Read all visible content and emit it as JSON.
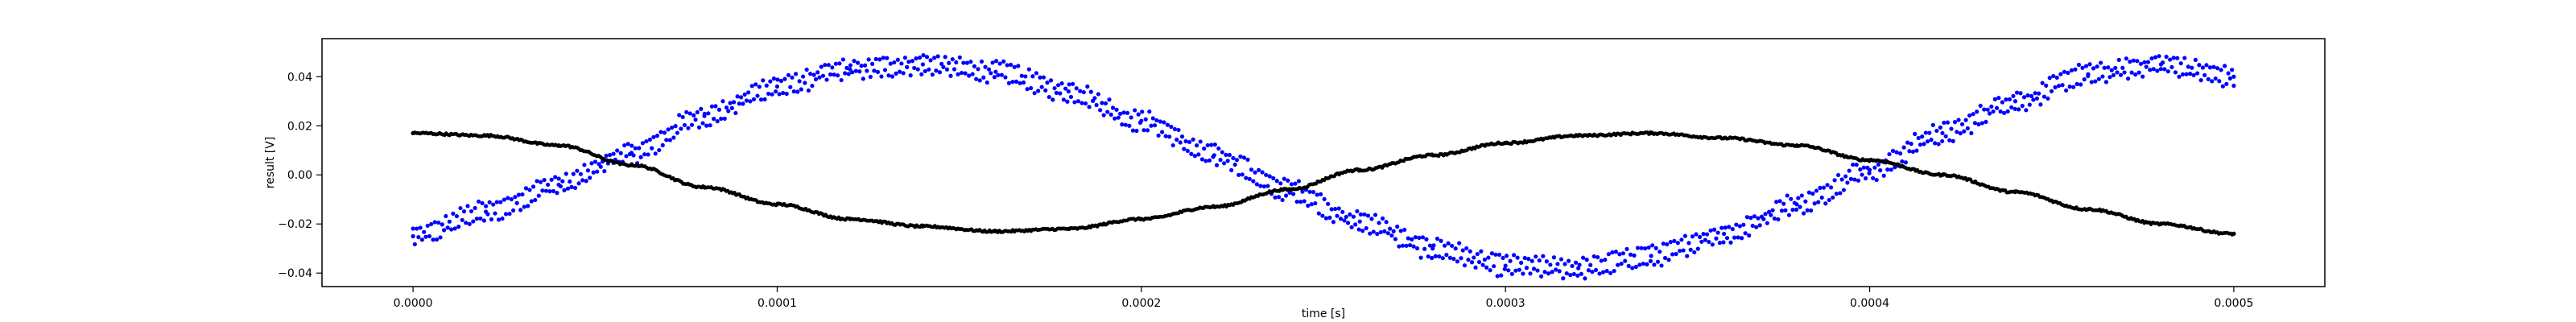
{
  "chart_data": {
    "type": "scatter",
    "title": "",
    "xlabel": "time [s]",
    "ylabel": "result [V]",
    "xlim": [
      -2.5e-05,
      0.000525
    ],
    "ylim": [
      -0.0455,
      0.0555
    ],
    "x_ticks": [
      0,
      0.0001,
      0.0002,
      0.0003,
      0.0004,
      0.0005
    ],
    "x_tick_labels": [
      "0.0000",
      "0.0001",
      "0.0002",
      "0.0003",
      "0.0004",
      "0.0005"
    ],
    "y_ticks": [
      -0.04,
      -0.02,
      0.0,
      0.02,
      0.04
    ],
    "y_tick_labels": [
      "−0.04",
      "−0.02",
      "0.00",
      "0.02",
      "0.04"
    ],
    "grid": false,
    "legend": "none",
    "series": [
      {
        "color": "#0000ff",
        "marker": "dot",
        "description_free_points": true,
        "x": [
          0.0,
          2e-05,
          4e-05,
          6e-05,
          8e-05,
          0.0001,
          0.00012,
          0.00014,
          0.00016,
          0.00018,
          0.0002,
          0.00022,
          0.00024,
          0.00026,
          0.00028,
          0.0003,
          0.00032,
          0.00034,
          0.00036,
          0.00038,
          0.0004,
          0.00042,
          0.00044,
          0.00046,
          0.00048,
          0.0005
        ],
        "y": [
          -0.025,
          -0.015,
          -0.004,
          0.009,
          0.024,
          0.036,
          0.043,
          0.045,
          0.042,
          0.034,
          0.022,
          0.008,
          -0.006,
          -0.019,
          -0.03,
          -0.037,
          -0.038,
          -0.033,
          -0.024,
          -0.012,
          0.002,
          0.017,
          0.03,
          0.041,
          0.045,
          0.04
        ]
      },
      {
        "color": "#000000",
        "marker": "dot",
        "x": [
          0.0,
          2e-05,
          4e-05,
          6e-05,
          8e-05,
          0.0001,
          0.00012,
          0.00014,
          0.00016,
          0.00018,
          0.0002,
          0.00022,
          0.00024,
          0.00026,
          0.00028,
          0.0003,
          0.00032,
          0.00034,
          0.00036,
          0.00038,
          0.0004,
          0.00042,
          0.00044,
          0.00046,
          0.00048,
          0.0005
        ],
        "y": [
          0.017,
          0.016,
          0.012,
          0.004,
          -0.005,
          -0.012,
          -0.018,
          -0.021,
          -0.023,
          -0.022,
          -0.018,
          -0.013,
          -0.006,
          0.002,
          0.008,
          0.013,
          0.016,
          0.017,
          0.015,
          0.012,
          0.006,
          0.0,
          -0.007,
          -0.014,
          -0.02,
          -0.024
        ]
      }
    ]
  }
}
